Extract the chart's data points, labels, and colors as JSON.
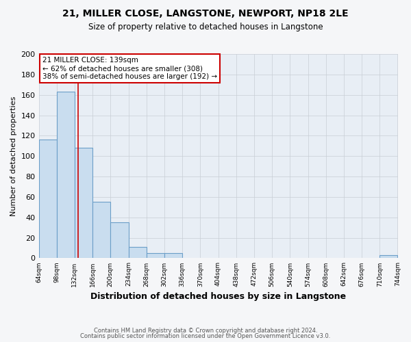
{
  "title": "21, MILLER CLOSE, LANGSTONE, NEWPORT, NP18 2LE",
  "subtitle": "Size of property relative to detached houses in Langstone",
  "xlabel": "Distribution of detached houses by size in Langstone",
  "ylabel": "Number of detached properties",
  "bar_color": "#c9ddef",
  "bar_edge_color": "#6b9ec8",
  "background_color": "#e8eef5",
  "grid_color": "#c8cdd4",
  "annotation_box_edge": "#cc0000",
  "annotation_line_color": "#cc0000",
  "annotation_text_line1": "21 MILLER CLOSE: 139sqm",
  "annotation_text_line2": "← 62% of detached houses are smaller (308)",
  "annotation_text_line3": "38% of semi-detached houses are larger (192) →",
  "property_line_x": 139,
  "bin_edges": [
    64,
    98,
    132,
    166,
    200,
    234,
    268,
    302,
    336,
    370,
    404,
    438,
    472,
    506,
    540,
    574,
    608,
    642,
    676,
    710,
    744
  ],
  "bar_heights": [
    116,
    163,
    108,
    55,
    35,
    11,
    5,
    5,
    0,
    0,
    0,
    0,
    0,
    0,
    0,
    0,
    0,
    0,
    0,
    3
  ],
  "ylim": [
    0,
    200
  ],
  "yticks": [
    0,
    20,
    40,
    60,
    80,
    100,
    120,
    140,
    160,
    180,
    200
  ],
  "footer_line1": "Contains HM Land Registry data © Crown copyright and database right 2024.",
  "footer_line2": "Contains public sector information licensed under the Open Government Licence v3.0.",
  "fig_bg": "#f5f6f8"
}
